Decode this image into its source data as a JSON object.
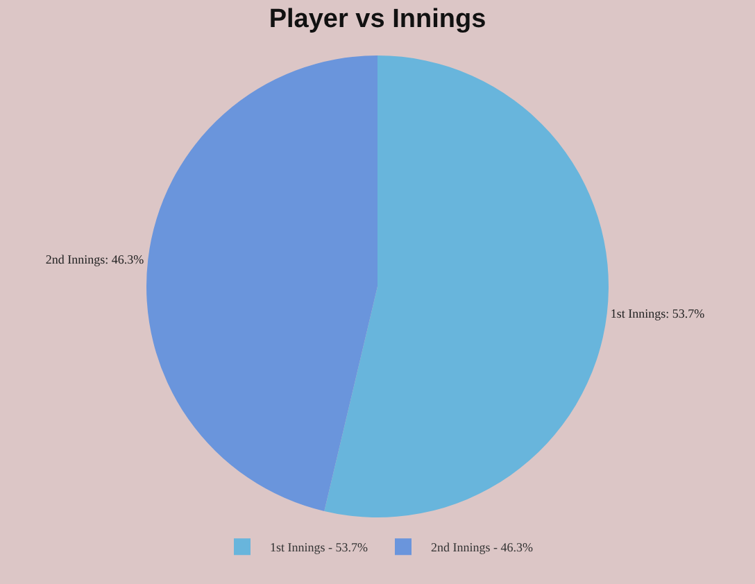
{
  "chart_data": {
    "type": "pie",
    "title": "Player vs Innings",
    "categories": [
      "1st Innings - 53.7%",
      "2nd Innings - 46.3%"
    ],
    "values": [
      53.7,
      46.3
    ],
    "colors": [
      "#68b5dc",
      "#6a95dc"
    ],
    "value_labels": [
      "1st Innings: 53.7%",
      "2nd Innings: 46.3%"
    ],
    "legend": "bottom"
  }
}
